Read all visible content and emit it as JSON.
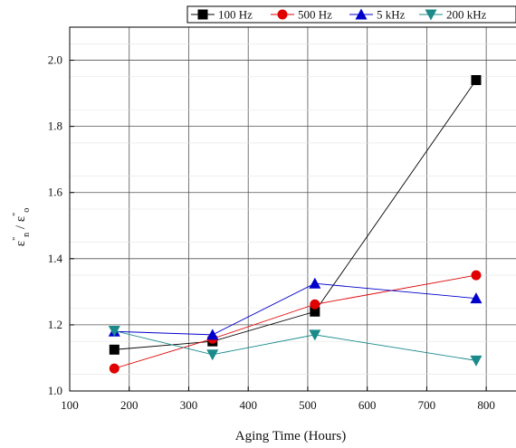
{
  "chart_data": {
    "type": "line",
    "xlabel": "Aging Time (Hours)",
    "ylabel": {
      "base": "ε",
      "sup1": "\"",
      "sub1": "n",
      "mid": " / ε",
      "sup2": "\"",
      "sub2": "o"
    },
    "xlim": [
      100,
      850
    ],
    "ylim": [
      1.0,
      2.1
    ],
    "x_ticks": [
      100,
      200,
      300,
      400,
      500,
      600,
      700,
      800
    ],
    "y_ticks": [
      1.0,
      1.2,
      1.4,
      1.6,
      1.8,
      2.0
    ],
    "x_tick_labels": [
      "100",
      "200",
      "300",
      "400",
      "500",
      "600",
      "700",
      "800"
    ],
    "y_tick_labels": [
      "1.0",
      "1.2",
      "1.4",
      "1.6",
      "1.8",
      "2.0"
    ],
    "grid": true,
    "legend_position": "top-right",
    "series": [
      {
        "name": "100 Hz",
        "color": "#000000",
        "marker": "square",
        "x": [
          175,
          340,
          512,
          783
        ],
        "y": [
          1.125,
          1.15,
          1.24,
          1.94
        ]
      },
      {
        "name": "500 Hz",
        "color": "#e00000",
        "marker": "circle",
        "x": [
          175,
          340,
          512,
          783
        ],
        "y": [
          1.068,
          1.158,
          1.262,
          1.35
        ]
      },
      {
        "name": "5 kHz",
        "color": "#0000cc",
        "marker": "triangle-up",
        "x": [
          175,
          340,
          512,
          783
        ],
        "y": [
          1.18,
          1.17,
          1.325,
          1.28
        ]
      },
      {
        "name": "200 kHz",
        "color": "#1a8a8a",
        "marker": "triangle-down",
        "x": [
          175,
          340,
          512,
          783
        ],
        "y": [
          1.182,
          1.11,
          1.17,
          1.092
        ]
      }
    ]
  }
}
